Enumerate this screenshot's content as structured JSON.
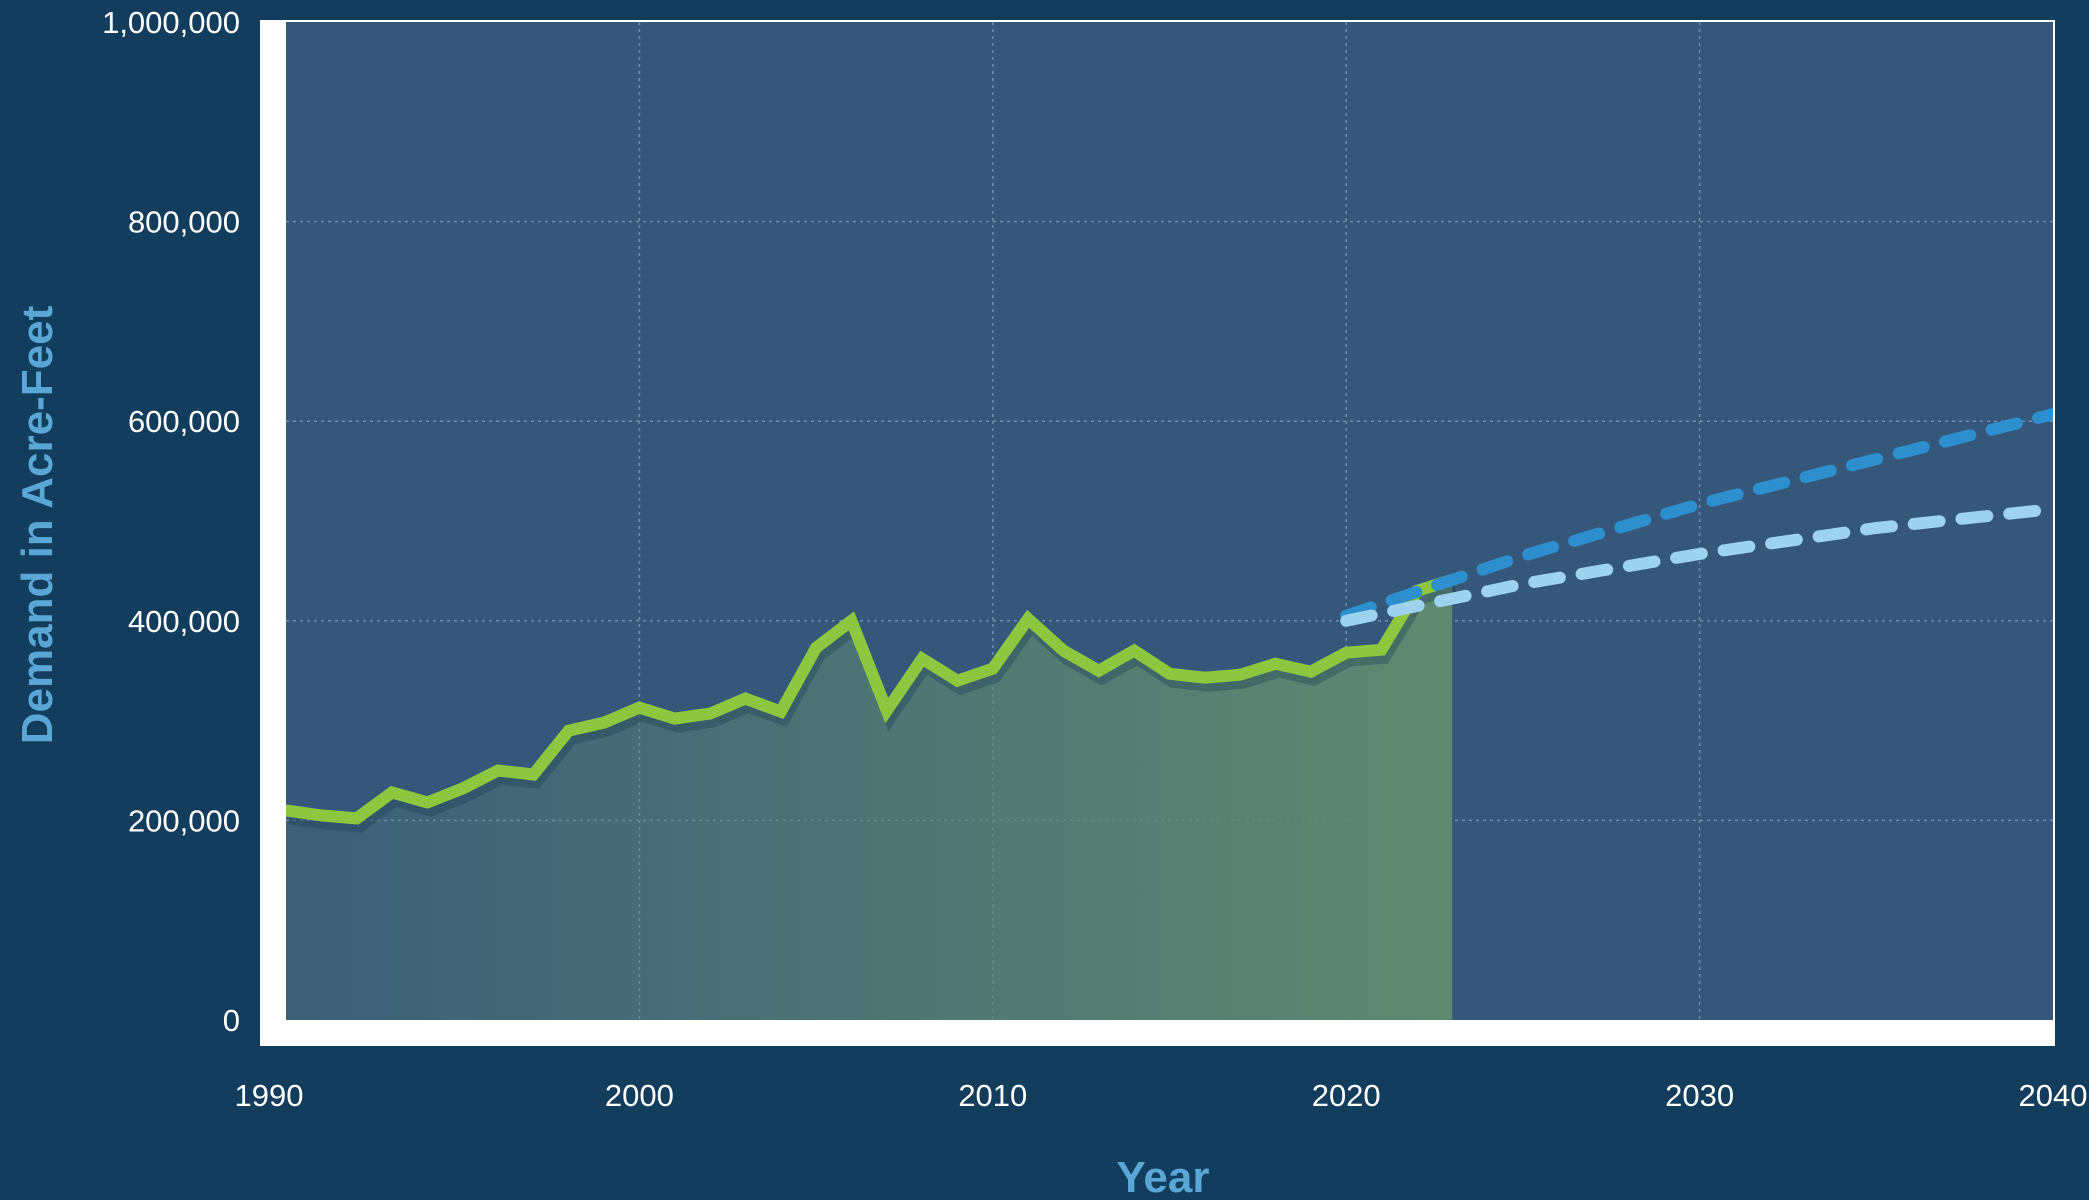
{
  "chart_data": {
    "type": "line",
    "title": "",
    "xlabel": "Year",
    "ylabel": "Demand in Acre-Feet",
    "xlim": [
      1990,
      2040
    ],
    "ylim": [
      0,
      1000000
    ],
    "x_ticks": [
      1990,
      2000,
      2010,
      2020,
      2030,
      2040
    ],
    "x_tick_labels": [
      "1990",
      "2000",
      "2010",
      "2020",
      "2030",
      "2040"
    ],
    "y_ticks": [
      0,
      200000,
      400000,
      600000,
      800000,
      1000000
    ],
    "y_tick_labels": [
      "0",
      "200,000",
      "400,000",
      "600,000",
      "800,000",
      "1,000,000"
    ],
    "grid": true,
    "legend": "none",
    "colors": {
      "background": "#133d5c",
      "plot_area": "#35587a",
      "frame": "#ffffff",
      "historical": "#8dc63f",
      "historical_fill": "#5e8a70",
      "projection_high": "#2e8fcf",
      "projection_low": "#9dd3ee"
    },
    "series": [
      {
        "style": "solid",
        "filled": true,
        "x": [
          1990,
          1991,
          1992,
          1993,
          1994,
          1995,
          1996,
          1997,
          1998,
          1999,
          2000,
          2001,
          2002,
          2003,
          2004,
          2005,
          2006,
          2007,
          2008,
          2009,
          2010,
          2011,
          2012,
          2013,
          2014,
          2015,
          2016,
          2017,
          2018,
          2019,
          2020,
          2021,
          2022,
          2023
        ],
        "values": [
          210000,
          205000,
          202000,
          228000,
          218000,
          232000,
          250000,
          246000,
          290000,
          298000,
          313000,
          302000,
          307000,
          322000,
          309000,
          373000,
          400000,
          310000,
          362000,
          340000,
          352000,
          402000,
          370000,
          350000,
          370000,
          347000,
          343000,
          346000,
          357000,
          349000,
          368000,
          371000,
          430000,
          441000
        ]
      },
      {
        "style": "dashed",
        "x": [
          2020,
          2025,
          2030,
          2035,
          2040
        ],
        "values": [
          405000,
          465000,
          517000,
          562000,
          607000
        ]
      },
      {
        "style": "dashed",
        "x": [
          2020,
          2025,
          2030,
          2035,
          2040
        ],
        "values": [
          400000,
          437000,
          467000,
          493000,
          512000
        ]
      }
    ]
  }
}
